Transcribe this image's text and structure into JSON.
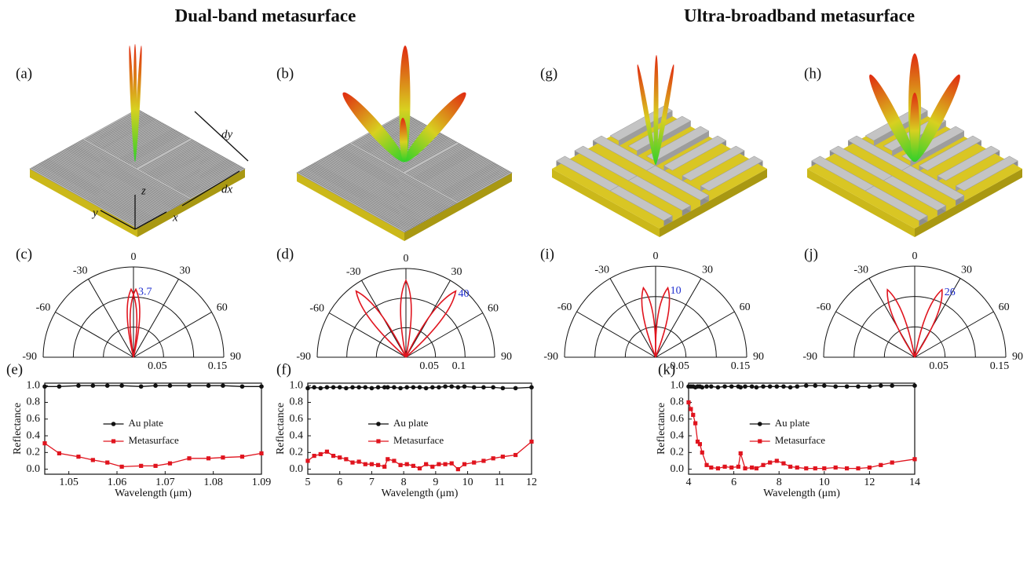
{
  "headings": [
    "Dual-band metasurface",
    "Ultra-broadband metasurface"
  ],
  "illustrations": [
    {
      "panel": "(a)",
      "axis_labels": {
        "z": "z",
        "y": "y",
        "x": "x",
        "dy": "dy",
        "dx": "dx"
      }
    },
    {
      "panel": "(b)"
    },
    {
      "panel": "(g)"
    },
    {
      "panel": "(h)"
    }
  ],
  "chart_data": [
    {
      "type": "polar",
      "panel": "(c)",
      "annotation": "3.7",
      "thetaticks": [
        -90,
        -60,
        -30,
        0,
        30,
        60,
        90
      ],
      "rlim": [
        0,
        0.15
      ],
      "rgrid": [
        0.05,
        0.1,
        0.15
      ],
      "rticks": [
        0.05,
        0.15
      ],
      "color": "#e0141e",
      "annotation_color": "#2030d0",
      "lobes": [
        {
          "angle": -2,
          "r": 0.113
        },
        {
          "angle": 2,
          "r": 0.113
        }
      ]
    },
    {
      "type": "polar",
      "panel": "(d)",
      "annotation": "40",
      "thetaticks": [
        -90,
        -60,
        -30,
        0,
        30,
        60,
        90
      ],
      "rlim": [
        0,
        0.15
      ],
      "rgrid": [
        0.05,
        0.1,
        0.15
      ],
      "rticks": [
        0.05,
        0.1
      ],
      "color": "#e0141e",
      "annotation_color": "#2030d0",
      "lobes": [
        {
          "angle": -37,
          "r": 0.14
        },
        {
          "angle": 0,
          "r": 0.13
        },
        {
          "angle": 37,
          "r": 0.14
        }
      ]
    },
    {
      "type": "polar",
      "panel": "(i)",
      "annotation": "10",
      "thetaticks": [
        -90,
        -60,
        -30,
        0,
        30,
        60,
        90
      ],
      "rlim": [
        0,
        0.15
      ],
      "rgrid": [
        0.05,
        0.1,
        0.15
      ],
      "rticks": [
        0.05,
        0.15
      ],
      "color": "#e0141e",
      "annotation_color": "#2030d0",
      "lobes": [
        {
          "angle": -10,
          "r": 0.116
        },
        {
          "angle": 10,
          "r": 0.116
        }
      ]
    },
    {
      "type": "polar",
      "panel": "(j)",
      "annotation": "26",
      "thetaticks": [
        -90,
        -60,
        -30,
        0,
        30,
        60,
        90
      ],
      "rlim": [
        0,
        0.15
      ],
      "rgrid": [
        0.05,
        0.1,
        0.15
      ],
      "rticks": [
        0.05,
        0.15
      ],
      "color": "#e0141e",
      "annotation_color": "#2030d0",
      "lobes": [
        {
          "angle": -22,
          "r": 0.12
        },
        {
          "angle": 22,
          "r": 0.12
        }
      ]
    },
    {
      "type": "line",
      "panel": "(e)",
      "xlabel": "Wavelength  (μm)",
      "ylabel": "Reflectance",
      "xlim": [
        1.045,
        1.09
      ],
      "xticks": [
        1.05,
        1.06,
        1.07,
        1.08,
        1.09
      ],
      "ylim": [
        -0.06,
        1.03
      ],
      "yticks": [
        {
          "value": 0,
          "label": "0.0"
        },
        0.2,
        0.4,
        0.6,
        0.8,
        {
          "value": 1,
          "label": "1.0"
        }
      ],
      "x": [
        1.045,
        1.048,
        1.052,
        1.055,
        1.058,
        1.061,
        1.065,
        1.068,
        1.071,
        1.075,
        1.079,
        1.082,
        1.086,
        1.09
      ],
      "series": [
        {
          "name": "Au plate",
          "color": "#111111",
          "marker": "circle",
          "values": [
            0.99,
            0.99,
            1.0,
            1.0,
            1.0,
            1.0,
            0.99,
            1.0,
            1.0,
            1.0,
            1.0,
            1.0,
            0.99,
            0.99
          ]
        },
        {
          "name": "Metasurface",
          "color": "#e0141e",
          "marker": "square",
          "values": [
            0.31,
            0.19,
            0.15,
            0.11,
            0.08,
            0.03,
            0.04,
            0.04,
            0.07,
            0.13,
            0.13,
            0.14,
            0.15,
            0.19
          ]
        }
      ]
    },
    {
      "type": "line",
      "panel": "(f)",
      "xlabel": "Wavelength  (μm)",
      "ylabel": "Reflectance",
      "xlim": [
        5,
        12
      ],
      "xticks": [
        5,
        6,
        7,
        8,
        9,
        10,
        11,
        12
      ],
      "ylim": [
        -0.06,
        1.03
      ],
      "yticks": [
        {
          "value": 0,
          "label": "0.0"
        },
        0.2,
        0.4,
        0.6,
        0.8,
        {
          "value": 1,
          "label": "1.0"
        }
      ],
      "x": [
        5,
        5.2,
        5.4,
        5.6,
        5.8,
        6,
        6.2,
        6.4,
        6.6,
        6.8,
        7,
        7.2,
        7.4,
        7.5,
        7.7,
        7.9,
        8.1,
        8.3,
        8.5,
        8.7,
        8.9,
        9.1,
        9.3,
        9.5,
        9.7,
        9.9,
        10.2,
        10.5,
        10.8,
        11.1,
        11.5,
        12
      ],
      "series": [
        {
          "name": "Au plate",
          "color": "#111111",
          "marker": "circle",
          "values": [
            0.97,
            0.98,
            0.97,
            0.98,
            0.98,
            0.98,
            0.97,
            0.98,
            0.98,
            0.98,
            0.97,
            0.98,
            0.98,
            0.98,
            0.98,
            0.97,
            0.98,
            0.98,
            0.98,
            0.97,
            0.98,
            0.98,
            0.99,
            0.99,
            0.98,
            0.99,
            0.98,
            0.98,
            0.98,
            0.97,
            0.97,
            0.98
          ]
        },
        {
          "name": "Metasurface",
          "color": "#e0141e",
          "marker": "square",
          "values": [
            0.1,
            0.16,
            0.18,
            0.21,
            0.16,
            0.14,
            0.12,
            0.08,
            0.09,
            0.06,
            0.06,
            0.05,
            0.03,
            0.12,
            0.1,
            0.05,
            0.06,
            0.04,
            0.01,
            0.06,
            0.03,
            0.06,
            0.06,
            0.07,
            0.0,
            0.06,
            0.08,
            0.1,
            0.13,
            0.15,
            0.17,
            0.33
          ]
        }
      ]
    },
    {
      "type": "line",
      "panel": "(k)",
      "xlabel": "Wavelength  (μm)",
      "ylabel": "Reflectance",
      "xlim": [
        4,
        14
      ],
      "xticks": [
        4,
        6,
        8,
        10,
        12,
        14
      ],
      "ylim": [
        -0.06,
        1.03
      ],
      "yticks": [
        {
          "value": 0,
          "label": "0.0"
        },
        0.2,
        0.4,
        0.6,
        0.8,
        {
          "value": 1,
          "label": "1.0"
        }
      ],
      "x": [
        4,
        4.1,
        4.2,
        4.3,
        4.4,
        4.5,
        4.6,
        4.8,
        5,
        5.3,
        5.6,
        5.9,
        6.2,
        6.3,
        6.5,
        6.8,
        7,
        7.3,
        7.6,
        7.9,
        8.2,
        8.5,
        8.8,
        9.2,
        9.6,
        10,
        10.5,
        11,
        11.5,
        12,
        12.5,
        13,
        14
      ],
      "series": [
        {
          "name": "Au plate",
          "color": "#111111",
          "marker": "circle",
          "values": [
            0.99,
            0.99,
            0.99,
            0.98,
            0.99,
            0.99,
            0.98,
            0.99,
            0.99,
            0.98,
            0.99,
            0.99,
            0.99,
            0.98,
            0.99,
            0.99,
            0.98,
            0.99,
            0.99,
            0.99,
            0.99,
            0.98,
            0.99,
            1.0,
            1.0,
            1.0,
            0.99,
            0.99,
            0.99,
            0.99,
            1.0,
            1.0,
            1.0
          ]
        },
        {
          "name": "Metasurface",
          "color": "#e0141e",
          "marker": "square",
          "values": [
            0.8,
            0.72,
            0.65,
            0.55,
            0.33,
            0.3,
            0.2,
            0.05,
            0.02,
            0.01,
            0.03,
            0.02,
            0.03,
            0.19,
            0.01,
            0.02,
            0.01,
            0.05,
            0.08,
            0.1,
            0.07,
            0.03,
            0.02,
            0.01,
            0.01,
            0.01,
            0.02,
            0.01,
            0.01,
            0.02,
            0.05,
            0.08,
            0.12
          ]
        }
      ]
    }
  ]
}
